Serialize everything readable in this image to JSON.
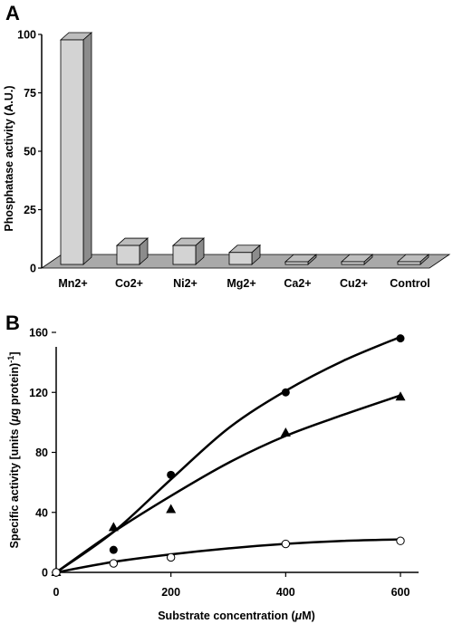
{
  "chart_data": [
    {
      "type": "bar",
      "panel_label": "A",
      "categories": [
        "Mn2+",
        "Co2+",
        "Ni2+",
        "Mg2+",
        "Ca2+",
        "Cu2+",
        "Control"
      ],
      "values": [
        100,
        12,
        12,
        9,
        5,
        0,
        0
      ],
      "ylabel": "Phosphatase activity (A.U.)",
      "xlabel": "",
      "ylim": [
        0,
        100
      ],
      "yticks": [
        0,
        25,
        50,
        75,
        100
      ],
      "style": "3d",
      "grid": false,
      "legend": "none",
      "colors": {
        "bar_front": "#d3d3d3",
        "bar_side": "#8c8c8c",
        "bar_top": "#bdbdbd",
        "floor": "#a9a9a9"
      }
    },
    {
      "type": "scatter",
      "panel_label": "B",
      "xlabel_prefix": "Substrate concentration (",
      "xlabel_mu": "μ",
      "xlabel_suffix": "M)",
      "ylabel_prefix": "Specific activity [units (",
      "ylabel_mu": "μ",
      "ylabel_suffix": "g protein)",
      "ylabel_sup": "-1",
      "ylabel_close": "]",
      "xlim": [
        0,
        600
      ],
      "ylim": [
        0,
        160
      ],
      "xticks": [
        0,
        200,
        400,
        600
      ],
      "yticks": [
        0,
        40,
        80,
        120,
        160
      ],
      "grid": false,
      "legend": "none",
      "series": [
        {
          "marker": "filled-circle",
          "x": [
            0,
            100,
            200,
            400,
            600
          ],
          "y": [
            0,
            15,
            65,
            120,
            156
          ],
          "fit": [
            [
              0,
              0
            ],
            [
              100,
              27
            ],
            [
              200,
              62
            ],
            [
              300,
              96
            ],
            [
              400,
              121
            ],
            [
              500,
              141
            ],
            [
              600,
              157
            ]
          ]
        },
        {
          "marker": "filled-triangle",
          "x": [
            0,
            100,
            200,
            400,
            600
          ],
          "y": [
            0,
            30,
            42,
            93,
            117
          ],
          "fit": [
            [
              0,
              0
            ],
            [
              100,
              27
            ],
            [
              200,
              51
            ],
            [
              300,
              73
            ],
            [
              400,
              91
            ],
            [
              500,
              105
            ],
            [
              600,
              118
            ]
          ]
        },
        {
          "marker": "open-circle",
          "x": [
            0,
            100,
            200,
            400,
            600
          ],
          "y": [
            0,
            6,
            10,
            19,
            21
          ],
          "fit": [
            [
              0,
              0
            ],
            [
              100,
              7
            ],
            [
              200,
              12
            ],
            [
              300,
              16
            ],
            [
              400,
              19
            ],
            [
              500,
              21
            ],
            [
              600,
              22
            ]
          ]
        }
      ]
    }
  ]
}
